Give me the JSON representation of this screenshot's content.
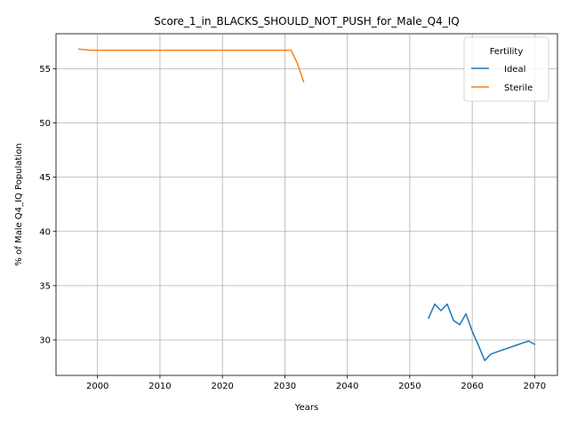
{
  "chart_data": {
    "type": "line",
    "title": "Score_1_in_BLACKS_SHOULD_NOT_PUSH_for_Male_Q4_IQ",
    "xlabel": "Years",
    "ylabel": "% of Male Q4_IQ Population",
    "xlim": [
      1993.35,
      2073.65
    ],
    "ylim": [
      26.73,
      58.22
    ],
    "xticks": [
      2000,
      2010,
      2020,
      2030,
      2040,
      2050,
      2060,
      2070
    ],
    "yticks": [
      30,
      35,
      40,
      45,
      50,
      55
    ],
    "grid": true,
    "legend": {
      "title": "Fertility",
      "position": "top-right"
    },
    "series": [
      {
        "name": "Ideal",
        "color": "#1f77b4",
        "x": [
          2053,
          2054,
          2055,
          2056,
          2057,
          2058,
          2059,
          2060,
          2061,
          2062,
          2063,
          2064,
          2065,
          2066,
          2067,
          2068,
          2069,
          2070
        ],
        "y": [
          32.0,
          33.3,
          32.7,
          33.3,
          31.8,
          31.4,
          32.4,
          30.8,
          29.5,
          28.1,
          28.7,
          28.9,
          29.1,
          29.3,
          29.5,
          29.7,
          29.9,
          29.6
        ]
      },
      {
        "name": "Sterile",
        "color": "#ff7f0e",
        "x": [
          1997,
          1999,
          2000,
          2005,
          2010,
          2015,
          2020,
          2025,
          2030,
          2031,
          2032,
          2033
        ],
        "y": [
          56.8,
          56.7,
          56.7,
          56.7,
          56.7,
          56.7,
          56.7,
          56.7,
          56.7,
          56.7,
          55.5,
          53.8
        ]
      }
    ]
  }
}
